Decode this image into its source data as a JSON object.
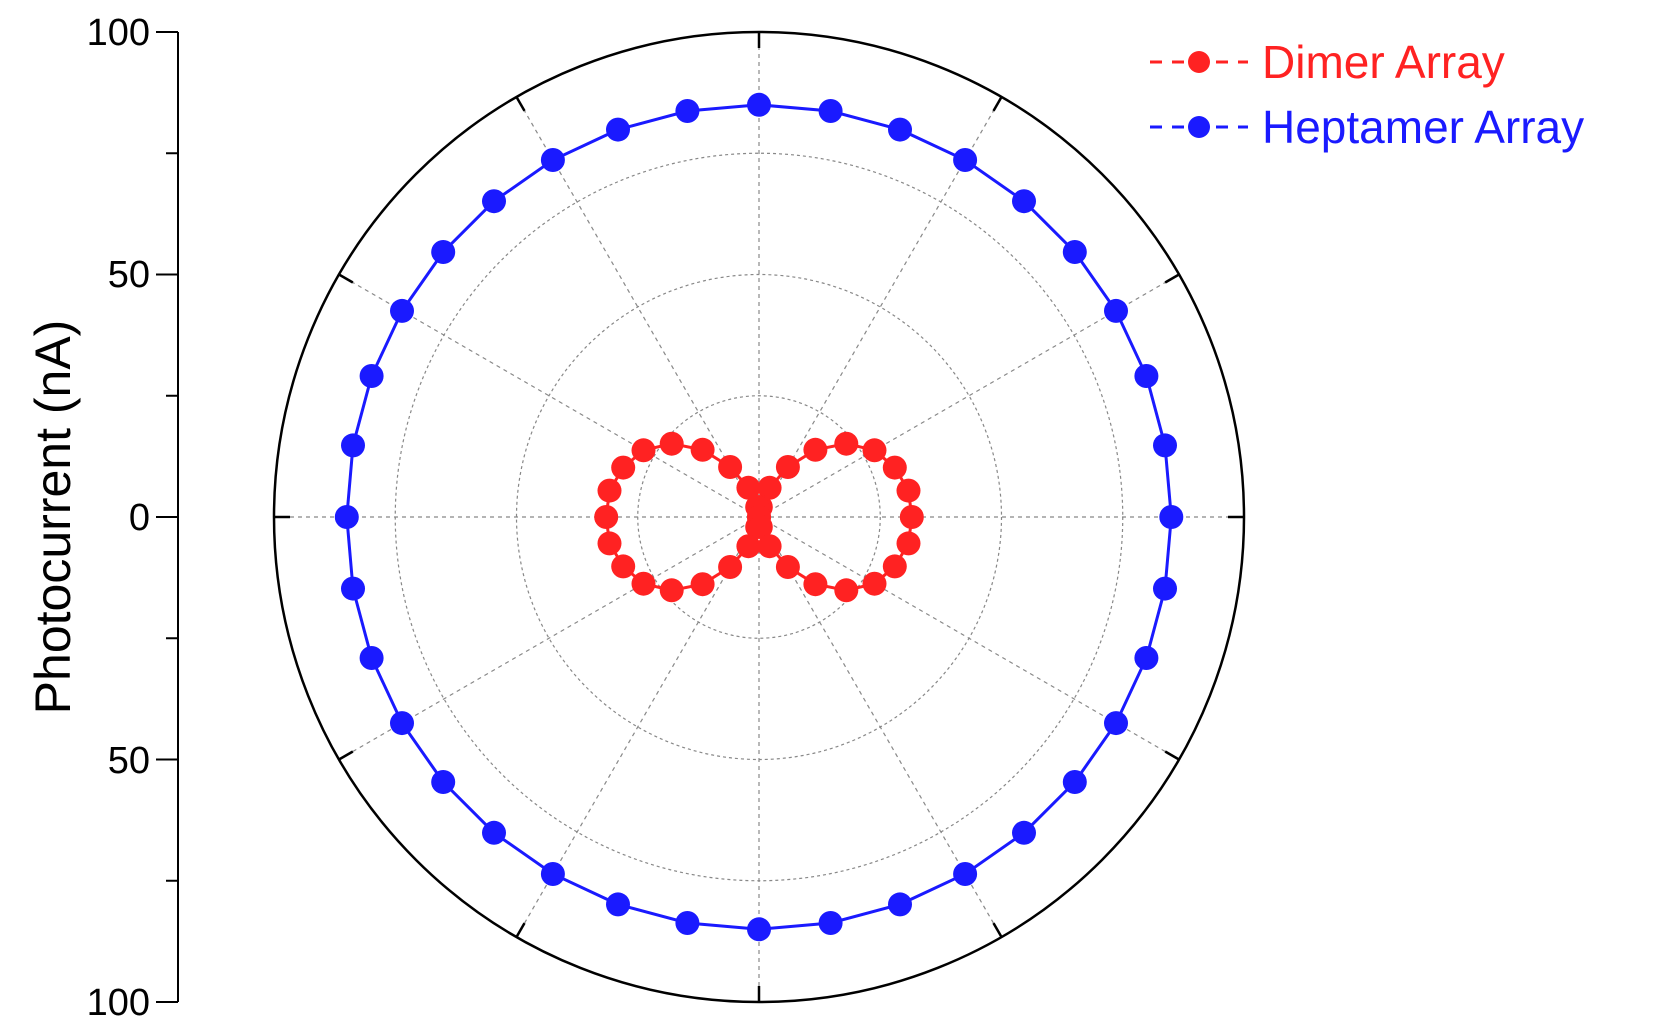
{
  "chart_data": {
    "type": "polar",
    "ylabel": "Photocurrent (nA)",
    "radial_ticks": [
      "100",
      "50",
      "0",
      "50",
      "100"
    ],
    "rlim": [
      0,
      100
    ],
    "angle_grid_step_deg": 30,
    "radial_grid": [
      25,
      50,
      75
    ],
    "legend_position": "top-right",
    "series": [
      {
        "name": "Dimer Array",
        "color": "#ff2222",
        "angles_deg": [
          0,
          10,
          20,
          30,
          40,
          50,
          60,
          70,
          80,
          90,
          100,
          110,
          120,
          130,
          140,
          150,
          160,
          170,
          180,
          190,
          200,
          210,
          220,
          230,
          240,
          250,
          260,
          270,
          280,
          290,
          300,
          310,
          320,
          330,
          340,
          350
        ],
        "values": [
          31.5,
          31.3,
          29.8,
          27.5,
          23.5,
          18.1,
          11.9,
          6.4,
          2.1,
          0,
          2.1,
          6.4,
          11.9,
          18.1,
          23.5,
          27.5,
          29.8,
          31.3,
          31.5,
          31.3,
          29.8,
          27.5,
          23.5,
          18.1,
          11.9,
          6.4,
          2.1,
          0,
          2.1,
          6.4,
          11.9,
          18.1,
          23.5,
          27.5,
          29.8,
          31.3
        ]
      },
      {
        "name": "Heptamer Array",
        "color": "#1a1aff",
        "angles_deg": [
          0,
          10,
          20,
          30,
          40,
          50,
          60,
          70,
          80,
          90,
          100,
          110,
          120,
          130,
          140,
          150,
          160,
          170,
          180,
          190,
          200,
          210,
          220,
          230,
          240,
          250,
          260,
          270,
          280,
          290,
          300,
          310,
          320,
          330,
          340,
          350
        ],
        "values": [
          85,
          85,
          85,
          85,
          85,
          85,
          85,
          85,
          85,
          85,
          85,
          85,
          85,
          85,
          85,
          85,
          85,
          85,
          85,
          85,
          85,
          85,
          85,
          85,
          85,
          85,
          85,
          85,
          85,
          85,
          85,
          85,
          85,
          85,
          85,
          85
        ]
      }
    ]
  }
}
